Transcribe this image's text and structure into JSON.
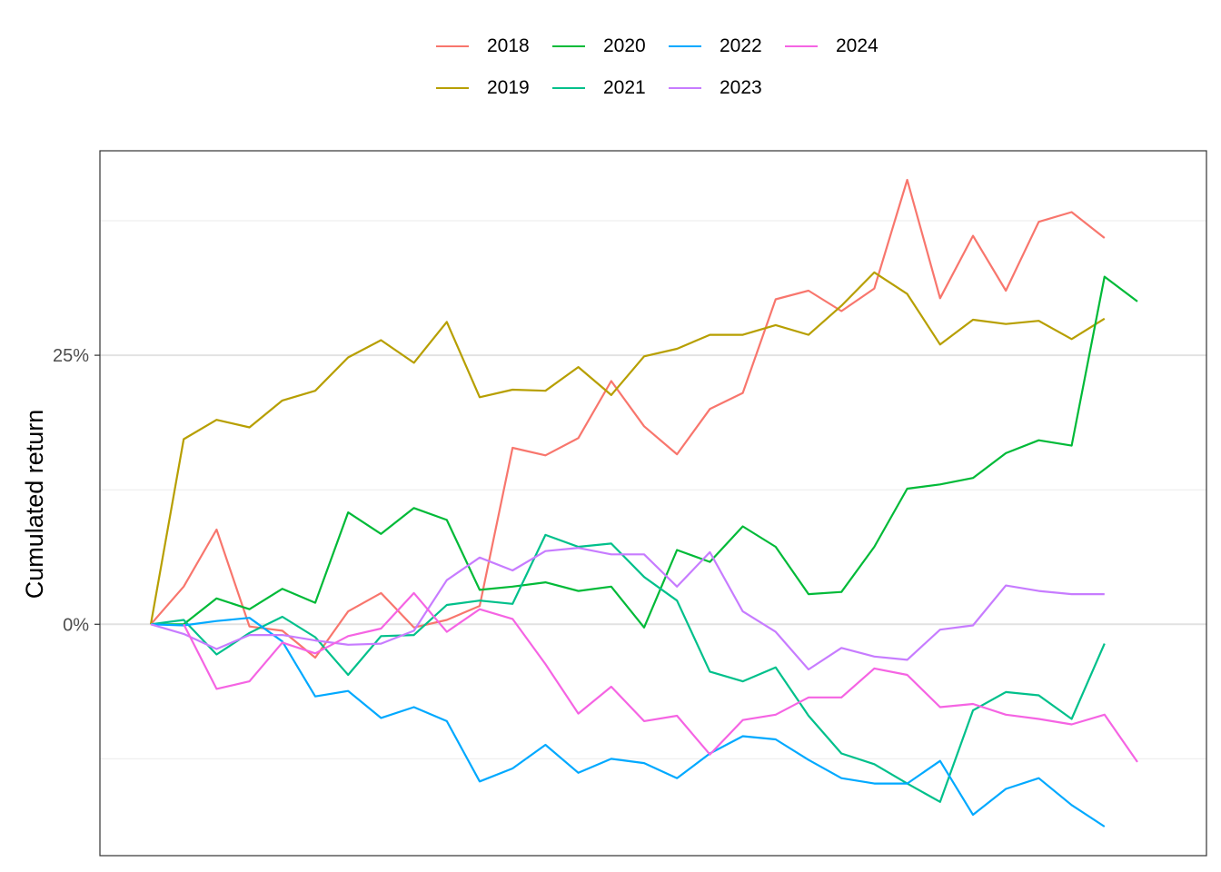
{
  "chart_data": {
    "type": "line",
    "title": "",
    "xlabel": "",
    "ylabel": "Cumulated return",
    "x_points": 31,
    "ylim": [
      -0.215,
      0.44
    ],
    "y_ticks": [
      0,
      0.25
    ],
    "y_tick_labels": [
      "0%",
      "25%"
    ],
    "minor_gridlines": [
      -0.125,
      0.125,
      0.375
    ],
    "grid": true,
    "x_axis_labels": false,
    "legend_position": "top",
    "series": [
      {
        "name": "2018",
        "color": "#F8766D",
        "values": [
          0,
          0.035,
          0.088,
          -0.002,
          -0.006,
          -0.031,
          0.012,
          0.029,
          -0.003,
          0.004,
          0.017,
          0.164,
          0.157,
          0.173,
          0.226,
          0.184,
          0.158,
          0.2,
          0.215,
          0.302,
          0.31,
          0.291,
          0.312,
          0.413,
          0.303,
          0.361,
          0.31,
          0.374,
          0.383,
          0.359
        ]
      },
      {
        "name": "2019",
        "color": "#B79F00",
        "values": [
          0,
          0.172,
          0.19,
          0.183,
          0.208,
          0.217,
          0.248,
          0.264,
          0.243,
          0.281,
          0.211,
          0.218,
          0.217,
          0.239,
          0.213,
          0.249,
          0.256,
          0.269,
          0.269,
          0.278,
          0.269,
          0.296,
          0.327,
          0.307,
          0.26,
          0.283,
          0.279,
          0.282,
          0.265,
          0.284
        ]
      },
      {
        "name": "2020",
        "color": "#00BA38",
        "values": [
          0,
          0.0,
          0.024,
          0.014,
          0.033,
          0.02,
          0.104,
          0.084,
          0.108,
          0.097,
          0.032,
          0.035,
          0.039,
          0.031,
          0.035,
          -0.003,
          0.069,
          0.058,
          0.091,
          0.072,
          0.028,
          0.03,
          0.072,
          0.126,
          0.13,
          0.136,
          0.159,
          0.171,
          0.166,
          0.323,
          0.3
        ]
      },
      {
        "name": "2021",
        "color": "#00C08B",
        "values": [
          0,
          0.004,
          -0.028,
          -0.008,
          0.007,
          -0.012,
          -0.047,
          -0.011,
          -0.01,
          0.018,
          0.022,
          0.019,
          0.083,
          0.072,
          0.075,
          0.044,
          0.022,
          -0.044,
          -0.053,
          -0.04,
          -0.085,
          -0.12,
          -0.13,
          -0.148,
          -0.165,
          -0.08,
          -0.063,
          -0.066,
          -0.088,
          -0.018
        ]
      },
      {
        "name": "2022",
        "color": "#00A9FF",
        "values": [
          0,
          -0.001,
          0.003,
          0.006,
          -0.016,
          -0.067,
          -0.062,
          -0.087,
          -0.077,
          -0.09,
          -0.146,
          -0.134,
          -0.112,
          -0.138,
          -0.125,
          -0.129,
          -0.143,
          -0.12,
          -0.104,
          -0.107,
          -0.126,
          -0.143,
          -0.148,
          -0.148,
          -0.127,
          -0.177,
          -0.153,
          -0.143,
          -0.168,
          -0.188
        ]
      },
      {
        "name": "2023",
        "color": "#C77CFF",
        "values": [
          0,
          -0.009,
          -0.023,
          -0.01,
          -0.01,
          -0.015,
          -0.019,
          -0.018,
          -0.006,
          0.041,
          0.062,
          0.05,
          0.068,
          0.071,
          0.065,
          0.065,
          0.035,
          0.067,
          0.012,
          -0.007,
          -0.042,
          -0.022,
          -0.03,
          -0.033,
          -0.005,
          -0.001,
          0.036,
          0.031,
          0.028,
          0.028
        ]
      },
      {
        "name": "2024",
        "color": "#F564E3",
        "values": [
          null,
          0,
          -0.06,
          -0.053,
          -0.017,
          -0.027,
          -0.011,
          -0.004,
          0.029,
          -0.007,
          0.014,
          0.005,
          -0.037,
          -0.083,
          -0.058,
          -0.09,
          -0.085,
          -0.121,
          -0.089,
          -0.084,
          -0.068,
          -0.068,
          -0.041,
          -0.047,
          -0.077,
          -0.074,
          -0.084,
          -0.088,
          -0.093,
          -0.084,
          -0.128
        ]
      }
    ]
  }
}
